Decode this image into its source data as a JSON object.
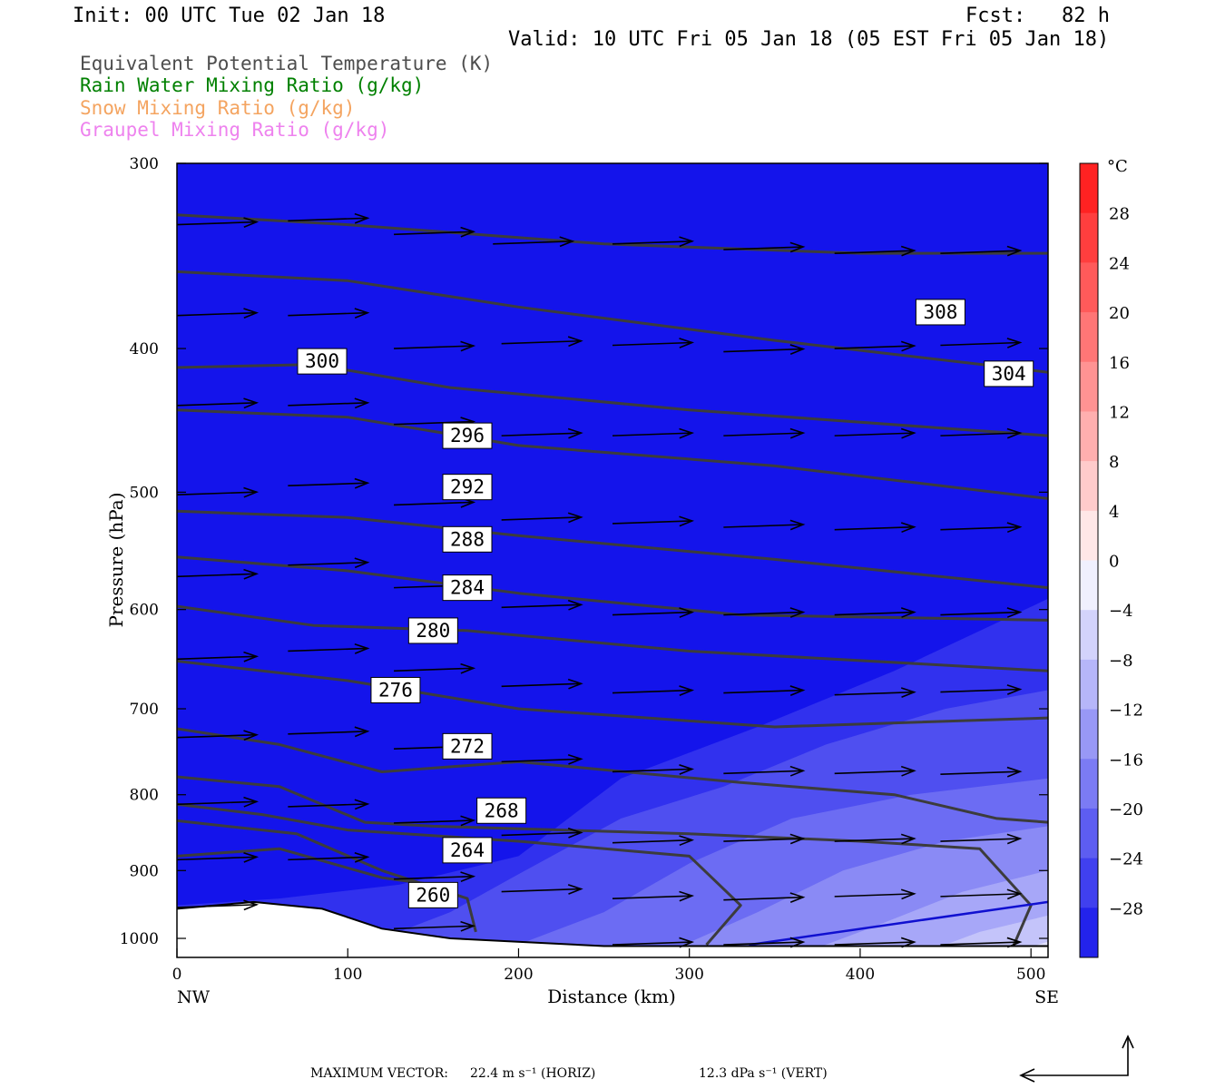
{
  "header": {
    "init": "Init: 00 UTC Tue 02 Jan 18",
    "fcst": "Fcst:   82 h",
    "valid": "Valid: 10 UTC Fri 05 Jan 18 (05 EST Fri 05 Jan 18)"
  },
  "legend": [
    {
      "text": "Equivalent Potential Temperature (K)",
      "color": "#4d4d4d"
    },
    {
      "text": "Rain Water Mixing Ratio (g/kg)",
      "color": "#008000"
    },
    {
      "text": "Snow Mixing Ratio (g/kg)",
      "color": "#f4a460"
    },
    {
      "text": "Graupel Mixing Ratio (g/kg)",
      "color": "#ee82ee"
    }
  ],
  "footer": {
    "max_vector_label": "MAXIMUM VECTOR:",
    "horiz": "22.4 m s⁻¹ (HORIZ)",
    "vert": "12.3 dPa s⁻¹ (VERT)"
  },
  "chart_data": {
    "type": "cross-section contour",
    "xlabel": "Distance (km)",
    "ylabel": "Pressure (hPa)",
    "xlim": [
      0,
      510
    ],
    "ylim": [
      1030,
      300
    ],
    "y_scale": "log",
    "x_ticks": [
      0,
      100,
      200,
      300,
      400,
      500
    ],
    "y_ticks": [
      300,
      400,
      500,
      600,
      700,
      800,
      900,
      1000
    ],
    "x_endpoints": {
      "left": "NW",
      "right": "SE"
    },
    "colorbar": {
      "unit": "°C",
      "tick_labels": [
        "28",
        "24",
        "20",
        "16",
        "12",
        "8",
        "4",
        "0",
        "−4",
        "−8",
        "−12",
        "−16",
        "−20",
        "−24",
        "−28"
      ],
      "bounds": [
        -32,
        32
      ],
      "step": 4
    },
    "fill_bands": [
      {
        "temp": -32,
        "points": [
          [
            0,
            300
          ],
          [
            510,
            300
          ],
          [
            510,
            1030
          ],
          [
            0,
            1030
          ]
        ]
      },
      {
        "temp": -28,
        "points": [
          [
            0,
            950
          ],
          [
            60,
            940
          ],
          [
            130,
            920
          ],
          [
            200,
            880
          ],
          [
            260,
            780
          ],
          [
            340,
            720
          ],
          [
            420,
            660
          ],
          [
            510,
            590
          ],
          [
            510,
            1030
          ],
          [
            0,
            1030
          ]
        ]
      },
      {
        "temp": -24,
        "points": [
          [
            120,
            1000
          ],
          [
            160,
            960
          ],
          [
            200,
            905
          ],
          [
            260,
            830
          ],
          [
            320,
            790
          ],
          [
            380,
            740
          ],
          [
            450,
            700
          ],
          [
            510,
            680
          ],
          [
            510,
            1030
          ],
          [
            120,
            1030
          ]
        ]
      },
      {
        "temp": -20,
        "points": [
          [
            180,
            1030
          ],
          [
            250,
            960
          ],
          [
            300,
            890
          ],
          [
            360,
            830
          ],
          [
            430,
            800
          ],
          [
            510,
            780
          ],
          [
            510,
            1030
          ]
        ]
      },
      {
        "temp": -16,
        "points": [
          [
            280,
            1030
          ],
          [
            340,
            960
          ],
          [
            390,
            900
          ],
          [
            450,
            860
          ],
          [
            510,
            840
          ],
          [
            510,
            1030
          ]
        ]
      },
      {
        "temp": -12,
        "points": [
          [
            360,
            1030
          ],
          [
            410,
            980
          ],
          [
            460,
            930
          ],
          [
            510,
            900
          ],
          [
            510,
            1030
          ]
        ]
      },
      {
        "temp": -8,
        "points": [
          [
            430,
            1030
          ],
          [
            470,
            990
          ],
          [
            510,
            965
          ],
          [
            510,
            1030
          ]
        ]
      },
      {
        "temp": -4,
        "points": [
          [
            480,
            1030
          ],
          [
            510,
            1005
          ],
          [
            510,
            1030
          ]
        ]
      }
    ],
    "theta_e_contours": [
      {
        "label": 308,
        "points": [
          [
            0,
            325
          ],
          [
            100,
            330
          ],
          [
            250,
            340
          ],
          [
            400,
            345
          ],
          [
            510,
            345
          ]
        ],
        "label_at": [
          447,
          378
        ]
      },
      {
        "label": 304,
        "points": [
          [
            0,
            355
          ],
          [
            100,
            360
          ],
          [
            200,
            375
          ],
          [
            350,
            395
          ],
          [
            510,
            415
          ]
        ],
        "label_at": [
          487,
          416
        ]
      },
      {
        "label": 300,
        "points": [
          [
            0,
            412
          ],
          [
            80,
            410
          ],
          [
            160,
            425
          ],
          [
            300,
            440
          ],
          [
            510,
            458
          ]
        ],
        "label_at": [
          85,
          408
        ]
      },
      {
        "label": 296,
        "points": [
          [
            0,
            440
          ],
          [
            100,
            445
          ],
          [
            200,
            465
          ],
          [
            350,
            480
          ],
          [
            510,
            505
          ]
        ],
        "label_at": [
          170,
          458
        ]
      },
      {
        "label": 292,
        "points": [
          [
            0,
            515
          ],
          [
            100,
            520
          ],
          [
            200,
            535
          ],
          [
            350,
            555
          ],
          [
            510,
            580
          ]
        ],
        "label_at": [
          170,
          496
        ]
      },
      {
        "label": 288,
        "points": [
          [
            0,
            553
          ],
          [
            100,
            565
          ],
          [
            200,
            585
          ],
          [
            330,
            605
          ],
          [
            510,
            610
          ]
        ],
        "label_at": [
          170,
          538
        ]
      },
      {
        "label": 284,
        "points": [
          [
            0,
            597
          ],
          [
            80,
            615
          ],
          [
            170,
            620
          ],
          [
            300,
            640
          ],
          [
            510,
            660
          ]
        ],
        "label_at": [
          170,
          580
        ]
      },
      {
        "label": 280,
        "points": [
          [
            0,
            650
          ],
          [
            100,
            670
          ],
          [
            200,
            700
          ],
          [
            350,
            720
          ],
          [
            510,
            710
          ]
        ],
        "label_at": [
          150,
          620
        ]
      },
      {
        "label": 276,
        "points": [
          [
            0,
            722
          ],
          [
            60,
            740
          ],
          [
            120,
            772
          ],
          [
            200,
            760
          ],
          [
            330,
            785
          ],
          [
            420,
            800
          ],
          [
            480,
            830
          ],
          [
            510,
            835
          ]
        ],
        "label_at": [
          128,
          680
        ]
      },
      {
        "label": 272,
        "points": [
          [
            0,
            778
          ],
          [
            60,
            790
          ],
          [
            110,
            835
          ],
          [
            150,
            840
          ],
          [
            300,
            850
          ],
          [
            400,
            860
          ],
          [
            470,
            870
          ],
          [
            500,
            950
          ],
          [
            490,
            1010
          ]
        ],
        "label_at": [
          170,
          742
        ]
      },
      {
        "label": 268,
        "points": [
          [
            0,
            812
          ],
          [
            50,
            825
          ],
          [
            100,
            845
          ],
          [
            200,
            860
          ],
          [
            300,
            880
          ],
          [
            330,
            950
          ],
          [
            310,
            1010
          ]
        ],
        "label_at": [
          190,
          820
        ]
      },
      {
        "label": 264,
        "points": [
          [
            0,
            833
          ],
          [
            70,
            850
          ],
          [
            120,
            900
          ],
          [
            170,
            940
          ],
          [
            175,
            990
          ]
        ],
        "label_at": [
          170,
          872
        ]
      },
      {
        "label": 260,
        "points": [
          [
            0,
            880
          ],
          [
            60,
            870
          ],
          [
            120,
            910
          ],
          [
            150,
            920
          ]
        ],
        "label_at": [
          150,
          935
        ]
      }
    ],
    "blue_line": {
      "points": [
        [
          335,
          1010
        ],
        [
          510,
          945
        ]
      ]
    },
    "terrain_surface": [
      [
        0,
        955
      ],
      [
        45,
        945
      ],
      [
        85,
        955
      ],
      [
        120,
        985
      ],
      [
        160,
        1000
      ],
      [
        250,
        1012
      ],
      [
        510,
        1012
      ]
    ],
    "wind_vectors": [
      {
        "x": 0,
        "p": 330,
        "u": 45,
        "w": -3
      },
      {
        "x": 65,
        "p": 328,
        "u": 45,
        "w": -3
      },
      {
        "x": 127,
        "p": 335,
        "u": 45,
        "w": -3
      },
      {
        "x": 185,
        "p": 340,
        "u": 45,
        "w": -3
      },
      {
        "x": 255,
        "p": 340,
        "u": 45,
        "w": -3
      },
      {
        "x": 320,
        "p": 343,
        "u": 45,
        "w": -3
      },
      {
        "x": 385,
        "p": 345,
        "u": 45,
        "w": -3
      },
      {
        "x": 447,
        "p": 345,
        "u": 45,
        "w": -3
      },
      {
        "x": 0,
        "p": 380,
        "u": 45,
        "w": -3
      },
      {
        "x": 65,
        "p": 380,
        "u": 45,
        "w": -3
      },
      {
        "x": 127,
        "p": 400,
        "u": 45,
        "w": -3
      },
      {
        "x": 190,
        "p": 397,
        "u": 45,
        "w": -3
      },
      {
        "x": 255,
        "p": 398,
        "u": 45,
        "w": -3
      },
      {
        "x": 320,
        "p": 402,
        "u": 45,
        "w": -3
      },
      {
        "x": 385,
        "p": 400,
        "u": 45,
        "w": -3
      },
      {
        "x": 447,
        "p": 398,
        "u": 45,
        "w": -3
      },
      {
        "x": 0,
        "p": 437,
        "u": 45,
        "w": -3
      },
      {
        "x": 65,
        "p": 437,
        "u": 45,
        "w": -3
      },
      {
        "x": 127,
        "p": 450,
        "u": 45,
        "w": -3
      },
      {
        "x": 190,
        "p": 458,
        "u": 45,
        "w": -3
      },
      {
        "x": 255,
        "p": 458,
        "u": 45,
        "w": -3
      },
      {
        "x": 320,
        "p": 458,
        "u": 45,
        "w": -3
      },
      {
        "x": 385,
        "p": 458,
        "u": 45,
        "w": -3
      },
      {
        "x": 447,
        "p": 458,
        "u": 45,
        "w": -3
      },
      {
        "x": 0,
        "p": 502,
        "u": 45,
        "w": -3
      },
      {
        "x": 65,
        "p": 495,
        "u": 45,
        "w": -3
      },
      {
        "x": 127,
        "p": 510,
        "u": 45,
        "w": -3
      },
      {
        "x": 190,
        "p": 522,
        "u": 45,
        "w": -3
      },
      {
        "x": 255,
        "p": 525,
        "u": 45,
        "w": -3
      },
      {
        "x": 320,
        "p": 528,
        "u": 45,
        "w": -3
      },
      {
        "x": 385,
        "p": 530,
        "u": 45,
        "w": -3
      },
      {
        "x": 447,
        "p": 530,
        "u": 45,
        "w": -3
      },
      {
        "x": 0,
        "p": 570,
        "u": 45,
        "w": -3
      },
      {
        "x": 65,
        "p": 560,
        "u": 45,
        "w": -3
      },
      {
        "x": 127,
        "p": 580,
        "u": 45,
        "w": -3
      },
      {
        "x": 190,
        "p": 598,
        "u": 45,
        "w": -3
      },
      {
        "x": 255,
        "p": 605,
        "u": 45,
        "w": -3
      },
      {
        "x": 320,
        "p": 605,
        "u": 45,
        "w": -3
      },
      {
        "x": 385,
        "p": 605,
        "u": 45,
        "w": -3
      },
      {
        "x": 447,
        "p": 605,
        "u": 45,
        "w": -3
      },
      {
        "x": 0,
        "p": 648,
        "u": 45,
        "w": -3
      },
      {
        "x": 65,
        "p": 640,
        "u": 45,
        "w": -3
      },
      {
        "x": 127,
        "p": 660,
        "u": 45,
        "w": -3
      },
      {
        "x": 190,
        "p": 676,
        "u": 45,
        "w": -3
      },
      {
        "x": 255,
        "p": 683,
        "u": 45,
        "w": -3
      },
      {
        "x": 320,
        "p": 683,
        "u": 45,
        "w": -3
      },
      {
        "x": 385,
        "p": 685,
        "u": 45,
        "w": -3
      },
      {
        "x": 447,
        "p": 682,
        "u": 45,
        "w": -3
      },
      {
        "x": 0,
        "p": 732,
        "u": 45,
        "w": -3
      },
      {
        "x": 65,
        "p": 728,
        "u": 45,
        "w": -3
      },
      {
        "x": 127,
        "p": 745,
        "u": 45,
        "w": -3
      },
      {
        "x": 190,
        "p": 760,
        "u": 45,
        "w": -3
      },
      {
        "x": 255,
        "p": 772,
        "u": 45,
        "w": -3
      },
      {
        "x": 320,
        "p": 774,
        "u": 45,
        "w": -3
      },
      {
        "x": 385,
        "p": 774,
        "u": 45,
        "w": -3
      },
      {
        "x": 447,
        "p": 775,
        "u": 45,
        "w": -3
      },
      {
        "x": 0,
        "p": 812,
        "u": 45,
        "w": -3
      },
      {
        "x": 65,
        "p": 815,
        "u": 45,
        "w": -3
      },
      {
        "x": 127,
        "p": 836,
        "u": 45,
        "w": -3
      },
      {
        "x": 190,
        "p": 852,
        "u": 45,
        "w": -3
      },
      {
        "x": 255,
        "p": 862,
        "u": 45,
        "w": -3
      },
      {
        "x": 320,
        "p": 860,
        "u": 45,
        "w": -3
      },
      {
        "x": 385,
        "p": 860,
        "u": 45,
        "w": -3
      },
      {
        "x": 447,
        "p": 860,
        "u": 45,
        "w": -3
      },
      {
        "x": 0,
        "p": 885,
        "u": 45,
        "w": -3
      },
      {
        "x": 65,
        "p": 885,
        "u": 45,
        "w": -3
      },
      {
        "x": 127,
        "p": 912,
        "u": 45,
        "w": -3
      },
      {
        "x": 190,
        "p": 930,
        "u": 45,
        "w": -3
      },
      {
        "x": 255,
        "p": 940,
        "u": 45,
        "w": -3
      },
      {
        "x": 320,
        "p": 942,
        "u": 45,
        "w": -3
      },
      {
        "x": 385,
        "p": 937,
        "u": 45,
        "w": -3
      },
      {
        "x": 447,
        "p": 937,
        "u": 45,
        "w": -3
      },
      {
        "x": 0,
        "p": 953,
        "u": 45,
        "w": -3
      },
      {
        "x": 127,
        "p": 985,
        "u": 45,
        "w": -3
      },
      {
        "x": 255,
        "p": 1010,
        "u": 45,
        "w": -3
      },
      {
        "x": 320,
        "p": 1010,
        "u": 45,
        "w": -3
      },
      {
        "x": 385,
        "p": 1010,
        "u": 45,
        "w": -3
      },
      {
        "x": 447,
        "p": 1010,
        "u": 45,
        "w": -3
      }
    ]
  }
}
